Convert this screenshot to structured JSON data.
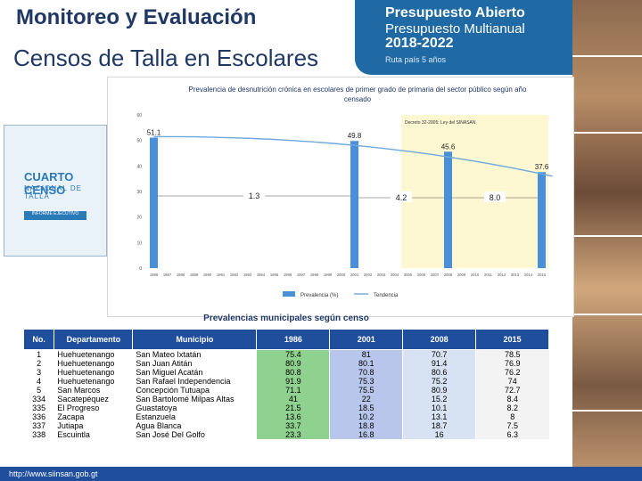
{
  "header": {
    "title_line1": "Monitoreo y Evaluación",
    "title_line2": "Censos de Talla en Escolares"
  },
  "logo": {
    "line1": "Presupuesto Abierto",
    "line2": "Presupuesto Multianual",
    "line3": "2018-2022",
    "line4": "Ruta país 5 años"
  },
  "booklet": {
    "title": "CUARTO CENSO",
    "subtitle": "NACIONAL DE TALLA",
    "badge": "INFORME EJECUTIVO"
  },
  "chart_data": {
    "type": "bar",
    "title": "Prevalencia de desnutrición crónica en escolares de primer grado de primaria del sector público según año censado",
    "annotation": "Decreto 32-2005: Ley del SINASAN",
    "x": [
      "1986",
      "1987",
      "1988",
      "1989",
      "1990",
      "1991",
      "1992",
      "1993",
      "1994",
      "1995",
      "1996",
      "1997",
      "1998",
      "1999",
      "2000",
      "2001",
      "2002",
      "2003",
      "2004",
      "2005",
      "2006",
      "2007",
      "2008",
      "2009",
      "2010",
      "2011",
      "2012",
      "2013",
      "2014",
      "2015"
    ],
    "series": [
      {
        "name": "Prevalencia (%)",
        "points": [
          {
            "x": "1986",
            "y": 51.1
          },
          {
            "x": "2001",
            "y": 49.8
          },
          {
            "x": "2008",
            "y": 45.6
          },
          {
            "x": "2015",
            "y": 37.6
          }
        ]
      },
      {
        "name": "Tendencia",
        "type": "line"
      }
    ],
    "differences": [
      {
        "label": "1.3",
        "between": [
          "1986",
          "2001"
        ]
      },
      {
        "label": "4.2",
        "between": [
          "2001",
          "2008"
        ]
      },
      {
        "label": "8.0",
        "between": [
          "2008",
          "2015"
        ]
      }
    ],
    "yticks": [
      "0",
      "10",
      "20",
      "30",
      "40",
      "50",
      "60"
    ],
    "ylim": [
      0,
      60
    ],
    "highlight_range": [
      "2005",
      "2015"
    ],
    "legend_position": "bottom",
    "colors": {
      "bar": "#4a90d9",
      "trend": "#6fa8dc",
      "highlight": "#fdf7d2"
    }
  },
  "table": {
    "title": "Prevalencias municipales según censo",
    "headers": [
      "No.",
      "Departamento",
      "Municipio",
      "1986",
      "2001",
      "2008",
      "2015"
    ],
    "rows": [
      [
        "1",
        "Huehuetenango",
        "San Mateo Ixtatán",
        "75.4",
        "81",
        "70.7",
        "78.5"
      ],
      [
        "2",
        "Huehuetenango",
        "San Juan Atitán",
        "80.9",
        "80.1",
        "91.4",
        "76.9"
      ],
      [
        "3",
        "Huehuetenango",
        "San Miguel Acatán",
        "80.8",
        "70.8",
        "80.6",
        "76.2"
      ],
      [
        "4",
        "Huehuetenango",
        "San Rafael Independencia",
        "91.9",
        "75.3",
        "75.2",
        "74"
      ],
      [
        "5",
        "San Marcos",
        "Concepción Tutuapa",
        "71.1",
        "75.5",
        "80.9",
        "72.7"
      ],
      [
        "334",
        "Sacatepéquez",
        "San Bartolomé Milpas Altas",
        "41",
        "22",
        "15.2",
        "8.4"
      ],
      [
        "335",
        "El Progreso",
        "Guastatoya",
        "21.5",
        "18.5",
        "10.1",
        "8.2"
      ],
      [
        "336",
        "Zacapa",
        "Estanzuela",
        "13.6",
        "10.2",
        "13.1",
        "8"
      ],
      [
        "337",
        "Jutiapa",
        "Agua Blanca",
        "33.7",
        "18.8",
        "18.7",
        "7.5"
      ],
      [
        "338",
        "Escuintla",
        "San José Del Golfo",
        "23.3",
        "16.8",
        "16",
        "6.3"
      ]
    ]
  },
  "footer": {
    "url": "http://www.siinsan.gob.gt"
  }
}
